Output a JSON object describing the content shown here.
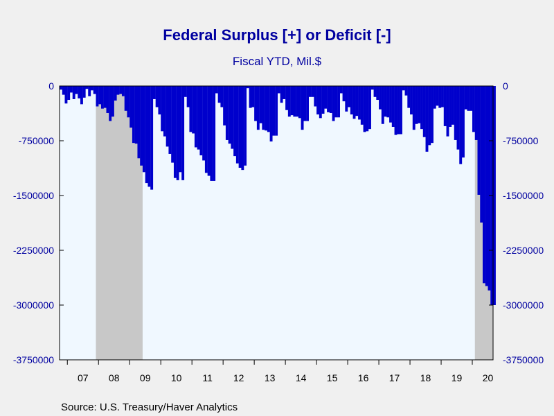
{
  "chart_data": {
    "type": "bar",
    "title": "Federal Surplus [+] or Deficit [-]",
    "subtitle": "Fiscal YTD, Mil.$",
    "source": "Source:  U.S. Treasury/Haver Analytics",
    "ylim": [
      -3750000,
      0
    ],
    "yticks": [
      0,
      -750000,
      -1500000,
      -2250000,
      -3000000,
      -3750000
    ],
    "ytick_labels": [
      "0",
      "-750000",
      "-1500000",
      "-2250000",
      "-3000000",
      "-3750000"
    ],
    "x_range": [
      2006.75,
      2020.6667
    ],
    "xtick_labels": [
      "07",
      "08",
      "09",
      "10",
      "11",
      "12",
      "13",
      "14",
      "15",
      "16",
      "17",
      "18",
      "19",
      "20"
    ],
    "xtick_positions": [
      2007.5,
      2008.5,
      2009.5,
      2010.5,
      2011.5,
      2012.5,
      2013.5,
      2014.5,
      2015.5,
      2016.5,
      2017.5,
      2018.5,
      2019.5,
      2020.5
    ],
    "recessions": [
      [
        2007.9167,
        2009.4167
      ],
      [
        2020.0833,
        2020.6667
      ]
    ],
    "grid": false,
    "colors": {
      "bars": "#0000cc",
      "plot_background": "#f0f8ff",
      "recession_shading": "#c8c8c8",
      "text": "#0000a0",
      "axis": "#000000",
      "page_background": "#f0f0f0"
    },
    "series": [
      {
        "start": 2006.75,
        "values": [
          -50000,
          -120000,
          -240000,
          -190000,
          -90000,
          -180000,
          -110000,
          -170000,
          -250000,
          -160000,
          -40000,
          -140000,
          -60000,
          -110000,
          -280000,
          -250000,
          -310000,
          -300000,
          -370000,
          -480000,
          -420000,
          -200000,
          -120000,
          -110000,
          -140000,
          -340000,
          -430000,
          -570000,
          -780000,
          -790000,
          -990000,
          -1090000,
          -1180000,
          -1330000,
          -1380000,
          -1420000,
          -180000,
          -290000,
          -390000,
          -620000,
          -690000,
          -830000,
          -930000,
          -1050000,
          -1260000,
          -1290000,
          -1180000,
          -1290000,
          -150000,
          -290000,
          -630000,
          -650000,
          -840000,
          -870000,
          -950000,
          -1020000,
          -1190000,
          -1230000,
          -1300000,
          -1300000,
          -100000,
          -230000,
          -290000,
          -540000,
          -740000,
          -790000,
          -860000,
          -960000,
          -1060000,
          -1120000,
          -1150000,
          -1090000,
          -30000,
          -300000,
          -290000,
          -480000,
          -600000,
          -510000,
          -600000,
          -610000,
          -630000,
          -760000,
          -680000,
          -680000,
          -100000,
          -230000,
          -180000,
          -330000,
          -420000,
          -400000,
          -420000,
          -420000,
          -440000,
          -600000,
          -480000,
          -480000,
          -150000,
          -150000,
          -280000,
          -390000,
          -440000,
          -380000,
          -310000,
          -360000,
          -370000,
          -480000,
          -430000,
          -430000,
          -100000,
          -210000,
          -350000,
          -290000,
          -390000,
          -450000,
          -410000,
          -460000,
          -530000,
          -630000,
          -620000,
          -590000,
          -50000,
          -150000,
          -190000,
          -320000,
          -520000,
          -420000,
          -430000,
          -500000,
          -560000,
          -670000,
          -660000,
          -660000,
          -60000,
          -130000,
          -300000,
          -390000,
          -600000,
          -520000,
          -510000,
          -590000,
          -700000,
          -900000,
          -810000,
          -780000,
          -310000,
          -270000,
          -300000,
          -290000,
          -550000,
          -690000,
          -560000,
          -530000,
          -740000,
          -870000,
          -1070000,
          -980000,
          -320000,
          -340000,
          -340000,
          -630000,
          -740000,
          -1490000,
          -1870000,
          -2700000,
          -2740000,
          -2800000,
          -3000000,
          -3000000
        ]
      }
    ]
  }
}
